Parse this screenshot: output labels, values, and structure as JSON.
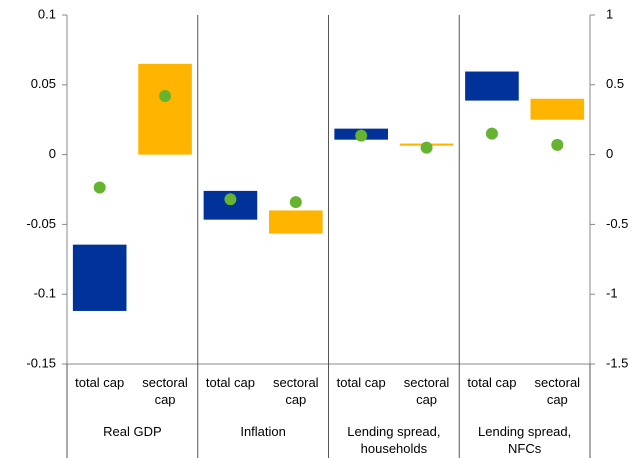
{
  "chart_data": {
    "type": "floating-bar",
    "groups": [
      "Real GDP",
      "Inflation",
      "Lending spread, households",
      "Lending spread, NFCs"
    ],
    "categories": [
      "total cap",
      "sectoral cap",
      "total cap",
      "sectoral cap",
      "total cap",
      "sectoral cap",
      "total cap",
      "sectoral cap"
    ],
    "bars": {
      "low": [
        -0.112,
        0,
        -0.0466,
        -0.0566,
        0.0107,
        0.0064,
        0.0387,
        0.025
      ],
      "high": [
        -0.0645,
        0.065,
        -0.026,
        -0.04,
        0.0186,
        0.0079,
        0.0595,
        0.04
      ],
      "colors": [
        "#003299",
        "#ffb400",
        "#003299",
        "#ffb400",
        "#003299",
        "#ffb400",
        "#003299",
        "#ffb400"
      ]
    },
    "dots": {
      "values": [
        -0.0236,
        0.042,
        -0.032,
        -0.034,
        0.0136,
        0.005,
        0.015,
        0.007
      ],
      "color": "#65b32e"
    },
    "ylim": [
      -0.15,
      0.1
    ],
    "yticks": [
      -0.15,
      -0.1,
      -0.05,
      0,
      0.05,
      0.1
    ],
    "y2lim": [
      -1.5,
      1
    ],
    "y2ticks": [
      -1.5,
      -1,
      -0.5,
      0,
      0.5,
      1
    ]
  }
}
